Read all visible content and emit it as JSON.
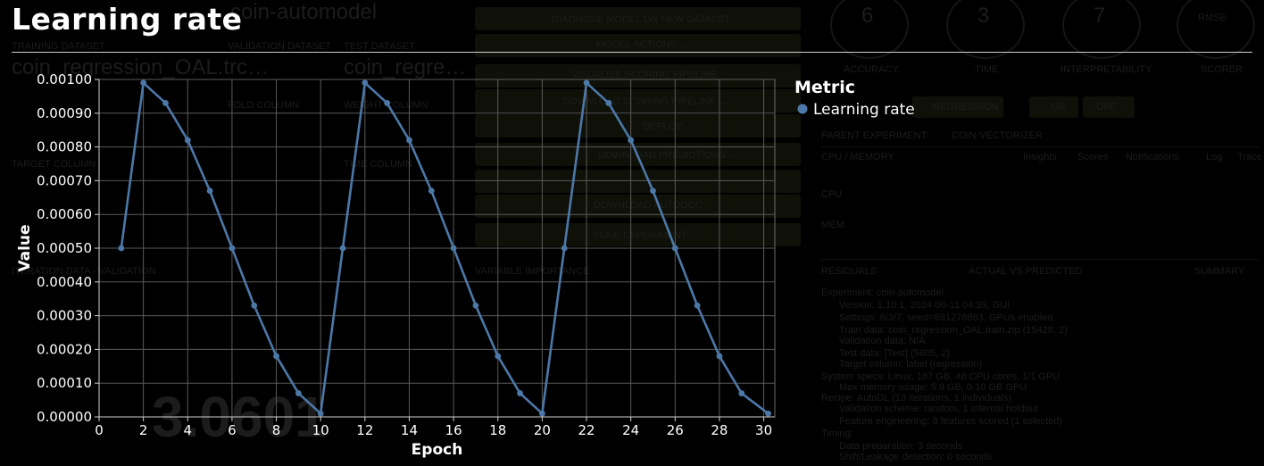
{
  "page_title": "Learning rate",
  "background_dashboard": {
    "texts": [
      "coin-automodel",
      "TRAINING DATASET",
      "VALIDATION DATASET",
      "TEST DATASET",
      "coin_regression_OAL.trc…",
      "coin_regre…",
      "DIAGNOSE MODEL ON NEW DATASET…",
      "MODEL ACTIONS →",
      "VISUALIZE SCORING PIPELINE",
      "DOWNLOAD SCORING PIPELINE →",
      "DEPLOY",
      "DOWNLOAD PREDICTIONS →",
      "DOWNLOAD AUTODOC",
      "TUNE EXPERIMENT",
      "6",
      "3",
      "7",
      "RMSE",
      "ACCURACY",
      "TIME",
      "INTERPRETABILITY",
      "SCORER",
      "REGRESSION",
      "ON",
      "OFF",
      "PARENT EXPERIMENT:",
      "COIN-VECTORIZER",
      "CPU / MEMORY",
      "Insights",
      "Scores",
      "Notifications",
      "Log",
      "Trace",
      "CPU",
      "MEM",
      "RESIDUALS",
      "ACTUAL VS PREDICTED",
      "SUMMARY",
      "ITERATION DATA - VALIDATION",
      "VARIABLE IMPORTANCE",
      "3.0601",
      "FOLD COLUMN",
      "WEIGHT COLUMN",
      "TARGET COLUMN",
      "TIME COLUMN",
      "Experiment: coin-automodel",
      "Version: 1.10.1, 2024-06-11 04:39, GUI",
      "Settings: 6/3/7, seed=691278883, GPUs enabled",
      "Train data: coin_regression_OAL.train.zip (15428, 2)",
      "Validation data: N/A",
      "Test data: [Test] (5605, 2)",
      "Target column: label (regression)",
      "System specs: Linux, 187 GB, 48 CPU cores, 1/1 GPU",
      "Max memory usage: 5.9 GB, 0.10 GB GPU",
      "Recipe: AutoDL (13 iterations, 1 individuals)",
      "Validation scheme: random, 1 internal holdout",
      "Feature engineering: 8 features scored (1 selected)",
      "Timing:",
      "Data preparation: 3 seconds",
      "Shift/Leakage detection: 0 seconds"
    ]
  },
  "chart_data": {
    "type": "line",
    "title": "",
    "xlabel": "Epoch",
    "ylabel": "Value",
    "xlim": [
      0,
      30.5
    ],
    "ylim": [
      0,
      0.001
    ],
    "x_ticks": [
      0,
      2,
      4,
      6,
      8,
      10,
      12,
      14,
      16,
      18,
      20,
      22,
      24,
      26,
      28,
      30
    ],
    "y_ticks": [
      0.0,
      0.0001,
      0.0002,
      0.0003,
      0.0004,
      0.0005,
      0.0006,
      0.0007,
      0.0008,
      0.0009,
      0.001
    ],
    "y_tick_labels": [
      "0.00000",
      "0.00010",
      "0.00020",
      "0.00030",
      "0.00040",
      "0.00050",
      "0.00060",
      "0.00070",
      "0.00080",
      "0.00090",
      "0.00100"
    ],
    "x_tick_labels": [
      "0",
      "2",
      "4",
      "6",
      "8",
      "10",
      "12",
      "14",
      "16",
      "18",
      "20",
      "22",
      "24",
      "26",
      "28",
      "30"
    ],
    "grid": true,
    "legend_title": "Metric",
    "legend_position": "top-right",
    "series": [
      {
        "name": "Learning rate",
        "color": "#4c78a8",
        "x": [
          1,
          2,
          3,
          4,
          5,
          6,
          7,
          8,
          9,
          10,
          11,
          12,
          13,
          14,
          15,
          16,
          17,
          18,
          19,
          20,
          21,
          22,
          23,
          24,
          25,
          26,
          27,
          28,
          29,
          30.2
        ],
        "y": [
          0.0005,
          0.00099,
          0.00093,
          0.00082,
          0.00067,
          0.0005,
          0.00033,
          0.00018,
          7e-05,
          1e-05,
          0.0005,
          0.00099,
          0.00093,
          0.00082,
          0.00067,
          0.0005,
          0.00033,
          0.00018,
          7e-05,
          1e-05,
          0.0005,
          0.00099,
          0.00093,
          0.00082,
          0.00067,
          0.0005,
          0.00033,
          0.00018,
          7e-05,
          1e-05
        ]
      }
    ]
  }
}
